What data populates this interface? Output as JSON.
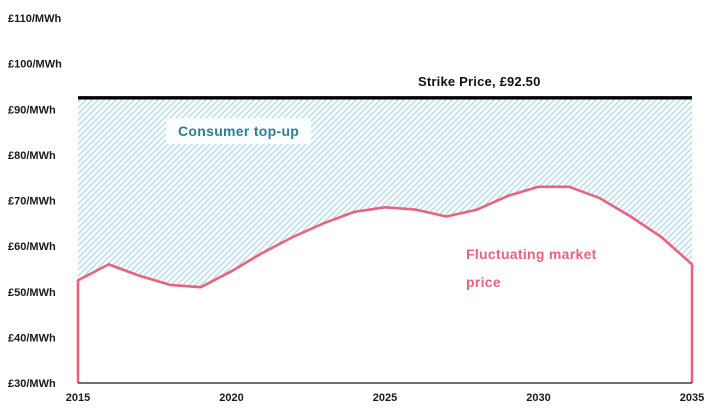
{
  "chart_data": {
    "type": "line",
    "title": "",
    "x": [
      2015,
      2016,
      2017,
      2018,
      2019,
      2020,
      2021,
      2022,
      2023,
      2024,
      2025,
      2026,
      2027,
      2028,
      2029,
      2030,
      2031,
      2032,
      2033,
      2034,
      2035
    ],
    "series": [
      {
        "name": "Fluctuating market price",
        "values": [
          52.5,
          56,
          53.5,
          51.5,
          51,
          54.5,
          58.5,
          62,
          65,
          67.5,
          68.5,
          68,
          66.5,
          68,
          71,
          73,
          73,
          70.5,
          66.5,
          62,
          56
        ]
      }
    ],
    "strike_price": 92.5,
    "xlim": [
      2015,
      2035
    ],
    "ylim": [
      30,
      110
    ],
    "grid": false,
    "legend": "none",
    "y_tick_values": [
      110,
      100,
      90,
      80,
      70,
      60,
      50,
      40,
      30
    ],
    "y_tick_labels": [
      "£110/MWh",
      "£100/MWh",
      "£90/MWh",
      "£80/MWh",
      "£70/MWh",
      "£60/MWh",
      "£50/MWh",
      "£40/MWh",
      "£30/MWh"
    ],
    "x_tick_values": [
      2015,
      2020,
      2025,
      2030,
      2035
    ],
    "x_tick_labels": [
      "2015",
      "2020",
      "2025",
      "2030",
      "2035"
    ],
    "annotations": {
      "strike_label": "Strike Price, £92.50",
      "consumer_topup_label": "Consumer top-up",
      "market_label": "Fluctuating market price"
    },
    "colors": {
      "market_line": "#e8637d",
      "strike_line": "#000000",
      "hatch_line": "#b5dde8",
      "hatch_bg": "#ffffff",
      "topup_text": "#2e7f93",
      "axis_line": "#1a1a1a",
      "axis_text": "#1a1a1a"
    }
  }
}
